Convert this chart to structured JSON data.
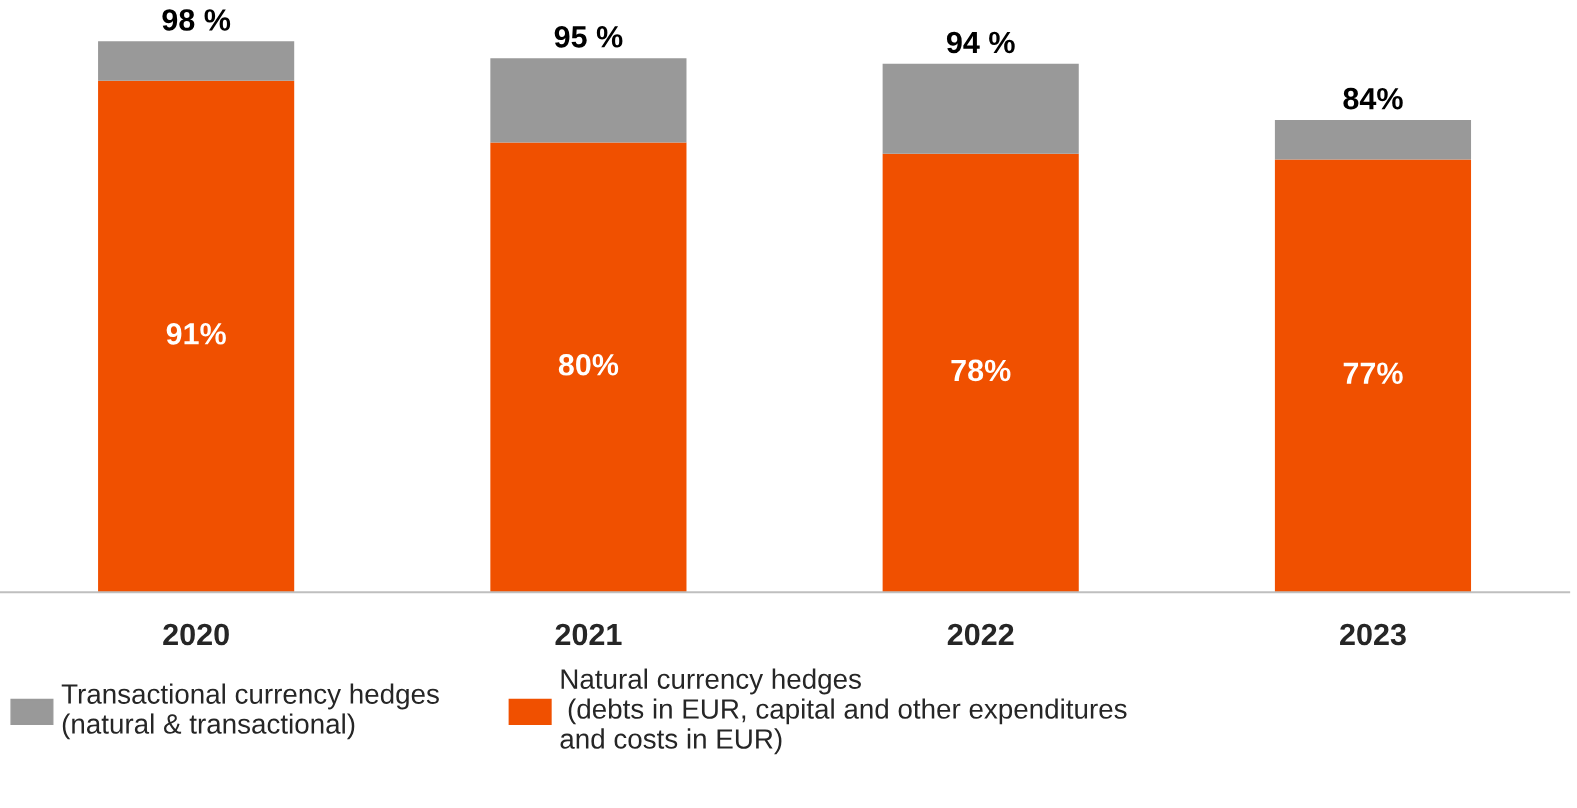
{
  "chart_data": {
    "type": "bar",
    "stacked": true,
    "categories": [
      "2020",
      "2021",
      "2022",
      "2023"
    ],
    "series": [
      {
        "name": "Natural currency hedges\n (debts in EUR, capital and other expenditures\nand costs in EUR)",
        "color": "#f05000",
        "values": [
          91,
          80,
          78,
          77
        ],
        "value_labels": [
          "91%",
          "80%",
          "78%",
          "77%"
        ]
      },
      {
        "name": "Transactional currency hedges\n(natural & transactional)",
        "color": "#999999",
        "values": [
          7,
          15,
          16,
          7
        ]
      }
    ],
    "totals": [
      "98 %",
      "95 %",
      "94 %",
      "84%"
    ],
    "legend": "bottom",
    "grid": false
  }
}
